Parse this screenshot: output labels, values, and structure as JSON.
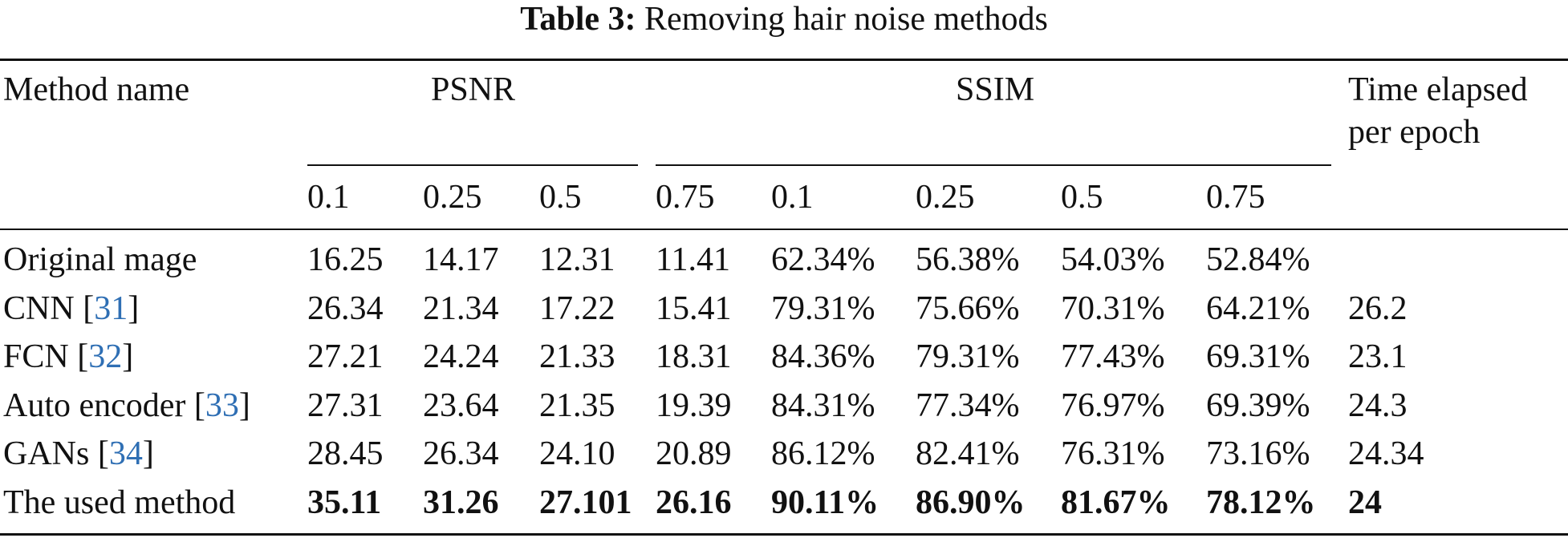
{
  "caption": {
    "label": "Table 3:",
    "text": "Removing hair noise methods"
  },
  "header": {
    "method": "Method name",
    "psnr": "PSNR",
    "ssim": "SSIM",
    "time_line1": "Time elapsed",
    "time_line2": "per epoch",
    "levels": [
      "0.1",
      "0.25",
      "0.5",
      "0.75",
      "0.1",
      "0.25",
      "0.5",
      "0.75"
    ]
  },
  "rows": [
    {
      "name": "Original mage",
      "ref": "",
      "values": [
        "16.25",
        "14.17",
        "12.31",
        "11.41",
        "62.34%",
        "56.38%",
        "54.03%",
        "52.84%"
      ],
      "time": ""
    },
    {
      "name": "CNN",
      "ref": "31",
      "values": [
        "26.34",
        "21.34",
        "17.22",
        "15.41",
        "79.31%",
        "75.66%",
        "70.31%",
        "64.21%"
      ],
      "time": "26.2"
    },
    {
      "name": "FCN",
      "ref": "32",
      "values": [
        "27.21",
        "24.24",
        "21.33",
        "18.31",
        "84.36%",
        "79.31%",
        "77.43%",
        "69.31%"
      ],
      "time": "23.1"
    },
    {
      "name": "Auto encoder",
      "ref": "33",
      "values": [
        "27.31",
        "23.64",
        "21.35",
        "19.39",
        "84.31%",
        "77.34%",
        "76.97%",
        "69.39%"
      ],
      "time": "24.3"
    },
    {
      "name": "GANs",
      "ref": "34",
      "values": [
        "28.45",
        "26.34",
        "24.10",
        "20.89",
        "86.12%",
        "82.41%",
        "76.31%",
        "73.16%"
      ],
      "time": "24.34"
    },
    {
      "name": "The used method",
      "ref": "",
      "values": [
        "35.11",
        "31.26",
        "27.101",
        "26.16",
        "90.11%",
        "86.90%",
        "81.67%",
        "78.12%"
      ],
      "time": "24"
    }
  ],
  "colors": {
    "ref_link": "#2f6fb4",
    "text": "#111111"
  }
}
